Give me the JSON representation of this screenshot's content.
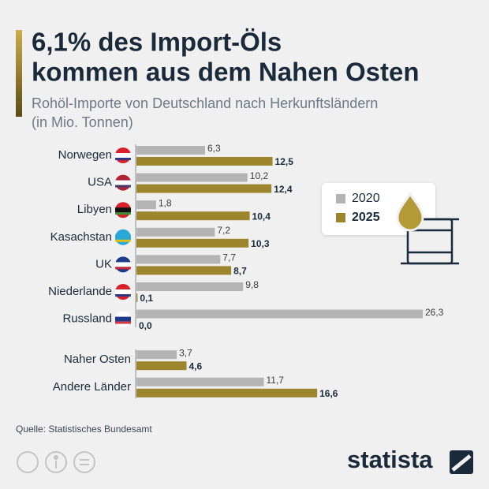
{
  "title": [
    "6,1% des Import-Öls",
    "kommen aus dem Nahen Osten"
  ],
  "subtitle": [
    "Rohöl-Importe von Deutschland nach Herkunftsländern",
    "(in Mio. Tonnen)"
  ],
  "chart_data": {
    "type": "bar",
    "orientation": "horizontal",
    "categories": [
      "Norwegen",
      "USA",
      "Libyen",
      "Kasachstan",
      "UK",
      "Niederlande",
      "Russland",
      "Naher Osten",
      "Andere Länder"
    ],
    "series": [
      {
        "name": "2020",
        "color": "#b4b4b4",
        "values": [
          6.3,
          10.2,
          1.8,
          7.2,
          7.7,
          9.8,
          26.3,
          3.7,
          11.7
        ],
        "value_labels": [
          "6,3",
          "10,2",
          "1,8",
          "7,2",
          "7,7",
          "9,8",
          "26,3",
          "3,7",
          "11,7"
        ]
      },
      {
        "name": "2025",
        "color": "#9c852c",
        "values": [
          12.5,
          12.4,
          10.4,
          10.3,
          8.7,
          0.1,
          0.0,
          4.6,
          16.6
        ],
        "value_labels": [
          "12,5",
          "12,4",
          "10,4",
          "10,3",
          "8,7",
          "0,1",
          "0,0",
          "4,6",
          "16,6"
        ]
      }
    ]
  },
  "source": "Quelle: Statistisches Bundesamt",
  "logo": "statista"
}
